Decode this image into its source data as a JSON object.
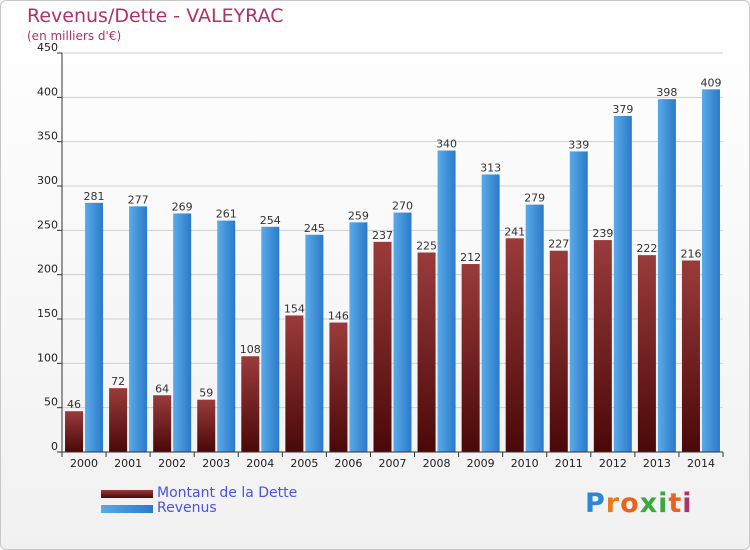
{
  "header": {
    "title": "Revenus/Dette - VALEYRAC",
    "subtitle": "(en milliers d'€)"
  },
  "legend": {
    "items": [
      {
        "label": "Montant de la Dette"
      },
      {
        "label": "Revenus"
      }
    ]
  },
  "logo": {
    "text": "Proxiti",
    "letters": [
      "P",
      "r",
      "o",
      "x",
      "i",
      "t",
      "i"
    ],
    "colors": [
      "#2e86d6",
      "#e87a1e",
      "#e8641e",
      "#3aa83a",
      "#3aa83a",
      "#e8641e",
      "#b0306a"
    ]
  },
  "colors": {
    "dette_light": "#9a3b3b",
    "dette_dark": "#4a0808",
    "revenus_light": "#5aaaea",
    "revenus_dark": "#2a7ac8",
    "title": "#b0306a",
    "legend_text": "#4a52e0"
  },
  "chart_data": {
    "type": "bar",
    "title": "Revenus/Dette - VALEYRAC",
    "subtitle": "(en milliers d'€)",
    "categories": [
      "2000",
      "2001",
      "2002",
      "2003",
      "2004",
      "2005",
      "2006",
      "2007",
      "2008",
      "2009",
      "2010",
      "2011",
      "2012",
      "2013",
      "2014"
    ],
    "series": [
      {
        "name": "Montant de la Dette",
        "values": [
          46,
          72,
          64,
          59,
          108,
          154,
          146,
          237,
          225,
          212,
          241,
          227,
          239,
          222,
          216
        ]
      },
      {
        "name": "Revenus",
        "values": [
          281,
          277,
          269,
          261,
          254,
          245,
          259,
          270,
          340,
          313,
          279,
          339,
          379,
          398,
          409
        ]
      }
    ],
    "ylim": [
      0,
      450
    ],
    "yticks": [
      0,
      50,
      100,
      150,
      200,
      250,
      300,
      350,
      400,
      450
    ],
    "grid": true,
    "legend_position": "bottom-left"
  }
}
